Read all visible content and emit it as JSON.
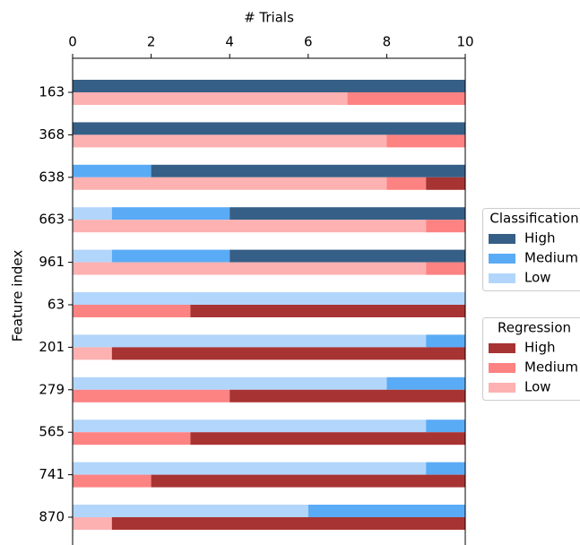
{
  "chart_data": {
    "type": "bar",
    "orientation": "horizontal",
    "stacked": true,
    "title": "# Trials",
    "y_label": "Feature index",
    "categories": [
      "163",
      "368",
      "638",
      "663",
      "961",
      "63",
      "201",
      "279",
      "565",
      "741",
      "870"
    ],
    "xlim": [
      0,
      10
    ],
    "xticks": [
      0,
      2,
      4,
      6,
      8,
      10
    ],
    "groups": [
      {
        "title": "Classification",
        "series": [
          {
            "name": "High",
            "color": "#365f87",
            "values": [
              10,
              10,
              8,
              6,
              6,
              0,
              0,
              0,
              0,
              0,
              0
            ]
          },
          {
            "name": "Medium",
            "color": "#5aabf6",
            "values": [
              0,
              0,
              2,
              3,
              3,
              0,
              1,
              2,
              1,
              1,
              4
            ]
          },
          {
            "name": "Low",
            "color": "#b2d6fb",
            "values": [
              0,
              0,
              0,
              1,
              1,
              10,
              9,
              8,
              9,
              9,
              6
            ]
          }
        ]
      },
      {
        "title": "Regression",
        "series": [
          {
            "name": "High",
            "color": "#a83333",
            "values": [
              0,
              0,
              1,
              0,
              0,
              7,
              9,
              6,
              7,
              8,
              9
            ]
          },
          {
            "name": "Medium",
            "color": "#fd8282",
            "values": [
              3,
              2,
              1,
              1,
              1,
              3,
              0,
              4,
              3,
              2,
              0
            ]
          },
          {
            "name": "Low",
            "color": "#fdb1b1",
            "values": [
              7,
              8,
              8,
              9,
              9,
              0,
              1,
              0,
              0,
              0,
              1
            ]
          }
        ]
      }
    ]
  }
}
